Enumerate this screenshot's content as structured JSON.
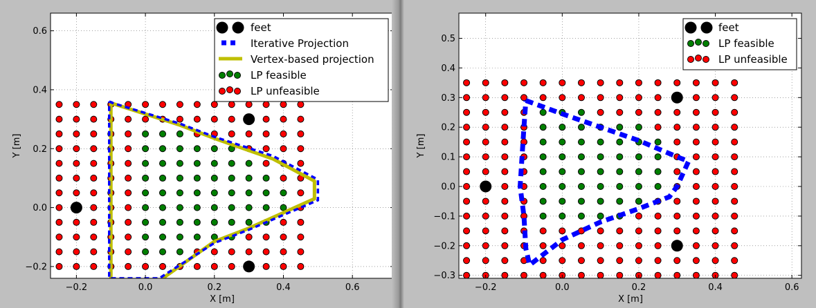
{
  "chart_data": [
    {
      "type": "scatter",
      "xlabel": "X [m]",
      "ylabel": "Y [m]",
      "xlim": [
        -0.275,
        0.72
      ],
      "ylim": [
        -0.24,
        0.66
      ],
      "xticks": [
        -0.2,
        0.0,
        0.2,
        0.4,
        0.6
      ],
      "xtick_labels": [
        "−0.2",
        "0.0",
        "0.2",
        "0.4",
        "0.6"
      ],
      "yticks": [
        -0.2,
        0.0,
        0.2,
        0.4,
        0.6
      ],
      "ytick_labels": [
        "−0.2",
        "0.0",
        "0.2",
        "0.4",
        "0.6"
      ],
      "grid": true,
      "legend_position": "top-right",
      "legend": [
        "feet",
        "Iterative Projection",
        "Vertex-based projection",
        "LP feasible",
        "LP unfeasible"
      ],
      "feet": [
        [
          -0.2,
          0.0
        ],
        [
          0.3,
          0.3
        ],
        [
          0.3,
          -0.2
        ]
      ],
      "grid_points": {
        "x_start": -0.25,
        "x_stop": 0.45,
        "x_step": 0.05,
        "y_start": -0.2,
        "y_stop": 0.35,
        "y_step": 0.05
      },
      "feasible_points": [
        [
          0.0,
          0.25
        ],
        [
          0.05,
          0.25
        ],
        [
          0.1,
          0.25
        ],
        [
          0.0,
          0.2
        ],
        [
          0.05,
          0.2
        ],
        [
          0.1,
          0.2
        ],
        [
          0.15,
          0.2
        ],
        [
          0.2,
          0.2
        ],
        [
          0.25,
          0.2
        ],
        [
          0.0,
          0.15
        ],
        [
          0.05,
          0.15
        ],
        [
          0.1,
          0.15
        ],
        [
          0.15,
          0.15
        ],
        [
          0.2,
          0.15
        ],
        [
          0.25,
          0.15
        ],
        [
          0.3,
          0.15
        ],
        [
          0.0,
          0.1
        ],
        [
          0.05,
          0.1
        ],
        [
          0.1,
          0.1
        ],
        [
          0.15,
          0.1
        ],
        [
          0.2,
          0.1
        ],
        [
          0.25,
          0.1
        ],
        [
          0.3,
          0.1
        ],
        [
          0.35,
          0.1
        ],
        [
          0.0,
          0.05
        ],
        [
          0.05,
          0.05
        ],
        [
          0.1,
          0.05
        ],
        [
          0.15,
          0.05
        ],
        [
          0.2,
          0.05
        ],
        [
          0.25,
          0.05
        ],
        [
          0.3,
          0.05
        ],
        [
          0.35,
          0.05
        ],
        [
          0.4,
          0.05
        ],
        [
          0.0,
          0.0
        ],
        [
          0.05,
          0.0
        ],
        [
          0.1,
          0.0
        ],
        [
          0.15,
          0.0
        ],
        [
          0.2,
          0.0
        ],
        [
          0.25,
          0.0
        ],
        [
          0.3,
          0.0
        ],
        [
          0.35,
          0.0
        ],
        [
          0.4,
          0.0
        ],
        [
          0.0,
          -0.05
        ],
        [
          0.05,
          -0.05
        ],
        [
          0.1,
          -0.05
        ],
        [
          0.15,
          -0.05
        ],
        [
          0.2,
          -0.05
        ],
        [
          0.25,
          -0.05
        ],
        [
          0.3,
          -0.05
        ],
        [
          0.35,
          -0.05
        ],
        [
          0.0,
          -0.1
        ],
        [
          0.05,
          -0.1
        ],
        [
          0.1,
          -0.1
        ],
        [
          0.15,
          -0.1
        ],
        [
          0.2,
          -0.1
        ],
        [
          0.25,
          -0.1
        ],
        [
          0.0,
          -0.15
        ],
        [
          0.05,
          -0.15
        ],
        [
          0.1,
          -0.15
        ]
      ],
      "iterative_projection": [
        [
          -0.105,
          0.36
        ],
        [
          -0.095,
          0.355
        ],
        [
          0.1,
          0.285
        ],
        [
          0.2,
          0.24
        ],
        [
          0.37,
          0.175
        ],
        [
          0.5,
          0.095
        ],
        [
          0.5,
          0.025
        ],
        [
          0.3,
          -0.075
        ],
        [
          0.2,
          -0.12
        ],
        [
          0.04,
          -0.24
        ],
        [
          -0.105,
          -0.24
        ],
        [
          -0.105,
          0.36
        ]
      ],
      "vertex_projection": [
        [
          -0.1,
          -0.24
        ],
        [
          -0.1,
          0.355
        ],
        [
          0.1,
          0.28
        ],
        [
          0.2,
          0.235
        ],
        [
          0.37,
          0.165
        ],
        [
          0.49,
          0.09
        ],
        [
          0.49,
          0.03
        ],
        [
          0.3,
          -0.07
        ],
        [
          0.2,
          -0.115
        ],
        [
          0.05,
          -0.24
        ]
      ]
    },
    {
      "type": "scatter",
      "xlabel": "X [m]",
      "ylabel": "Y [m]",
      "xlim": [
        -0.27,
        0.625
      ],
      "ylim": [
        -0.31,
        0.585
      ],
      "xticks": [
        -0.2,
        0.0,
        0.2,
        0.4,
        0.6
      ],
      "xtick_labels": [
        "−0.2",
        "0.0",
        "0.2",
        "0.4",
        "0.6"
      ],
      "yticks": [
        -0.3,
        -0.2,
        -0.1,
        0.0,
        0.1,
        0.2,
        0.3,
        0.4,
        0.5
      ],
      "ytick_labels": [
        "−0.3",
        "−0.2",
        "−0.1",
        "0.0",
        "0.1",
        "0.2",
        "0.3",
        "0.4",
        "0.5"
      ],
      "grid": true,
      "legend_position": "top-right",
      "legend": [
        "feet",
        "LP feasible",
        "LP unfeasible"
      ],
      "feet": [
        [
          -0.2,
          0.0
        ],
        [
          0.3,
          0.3
        ],
        [
          0.3,
          -0.2
        ]
      ],
      "grid_points": {
        "x_start": -0.25,
        "x_stop": 0.45,
        "x_step": 0.05,
        "y_start": -0.3,
        "y_stop": 0.35,
        "y_step": 0.05
      },
      "feasible_points": [
        [
          -0.05,
          0.25
        ],
        [
          0.0,
          0.25
        ],
        [
          0.05,
          0.25
        ],
        [
          -0.05,
          0.2
        ],
        [
          0.0,
          0.2
        ],
        [
          0.05,
          0.2
        ],
        [
          0.1,
          0.2
        ],
        [
          0.15,
          0.2
        ],
        [
          0.2,
          0.2
        ],
        [
          -0.05,
          0.15
        ],
        [
          0.0,
          0.15
        ],
        [
          0.05,
          0.15
        ],
        [
          0.1,
          0.15
        ],
        [
          0.15,
          0.15
        ],
        [
          0.2,
          0.15
        ],
        [
          0.25,
          0.15
        ],
        [
          -0.05,
          0.1
        ],
        [
          0.0,
          0.1
        ],
        [
          0.05,
          0.1
        ],
        [
          0.1,
          0.1
        ],
        [
          0.15,
          0.1
        ],
        [
          0.2,
          0.1
        ],
        [
          0.25,
          0.1
        ],
        [
          -0.05,
          0.05
        ],
        [
          0.0,
          0.05
        ],
        [
          0.05,
          0.05
        ],
        [
          0.1,
          0.05
        ],
        [
          0.15,
          0.05
        ],
        [
          0.2,
          0.05
        ],
        [
          0.25,
          0.05
        ],
        [
          -0.05,
          0.0
        ],
        [
          0.0,
          0.0
        ],
        [
          0.05,
          0.0
        ],
        [
          0.1,
          0.0
        ],
        [
          0.15,
          0.0
        ],
        [
          0.2,
          0.0
        ],
        [
          0.25,
          0.0
        ],
        [
          -0.05,
          -0.05
        ],
        [
          0.0,
          -0.05
        ],
        [
          0.05,
          -0.05
        ],
        [
          0.1,
          -0.05
        ],
        [
          0.15,
          -0.05
        ],
        [
          0.2,
          -0.05
        ],
        [
          -0.05,
          -0.1
        ],
        [
          0.0,
          -0.1
        ],
        [
          0.05,
          -0.1
        ],
        [
          0.1,
          -0.1
        ],
        [
          0.15,
          -0.1
        ]
      ],
      "iterative_projection": [
        [
          -0.095,
          0.29
        ],
        [
          0.0,
          0.245
        ],
        [
          0.1,
          0.2
        ],
        [
          0.2,
          0.155
        ],
        [
          0.3,
          0.1
        ],
        [
          0.33,
          0.085
        ],
        [
          0.3,
          0.0
        ],
        [
          0.28,
          -0.035
        ],
        [
          0.2,
          -0.075
        ],
        [
          0.1,
          -0.12
        ],
        [
          0.0,
          -0.18
        ],
        [
          -0.075,
          -0.255
        ],
        [
          -0.085,
          -0.265
        ],
        [
          -0.095,
          -0.21
        ],
        [
          -0.1,
          -0.1
        ],
        [
          -0.11,
          0.0
        ],
        [
          -0.105,
          0.1
        ],
        [
          -0.1,
          0.2
        ],
        [
          -0.095,
          0.29
        ]
      ]
    }
  ],
  "colors": {
    "feasible": "#007f00",
    "unfeasible": "#ff0000",
    "feet": "#000000",
    "iterative": "#0000ff",
    "vertex": "#bfbf00"
  }
}
